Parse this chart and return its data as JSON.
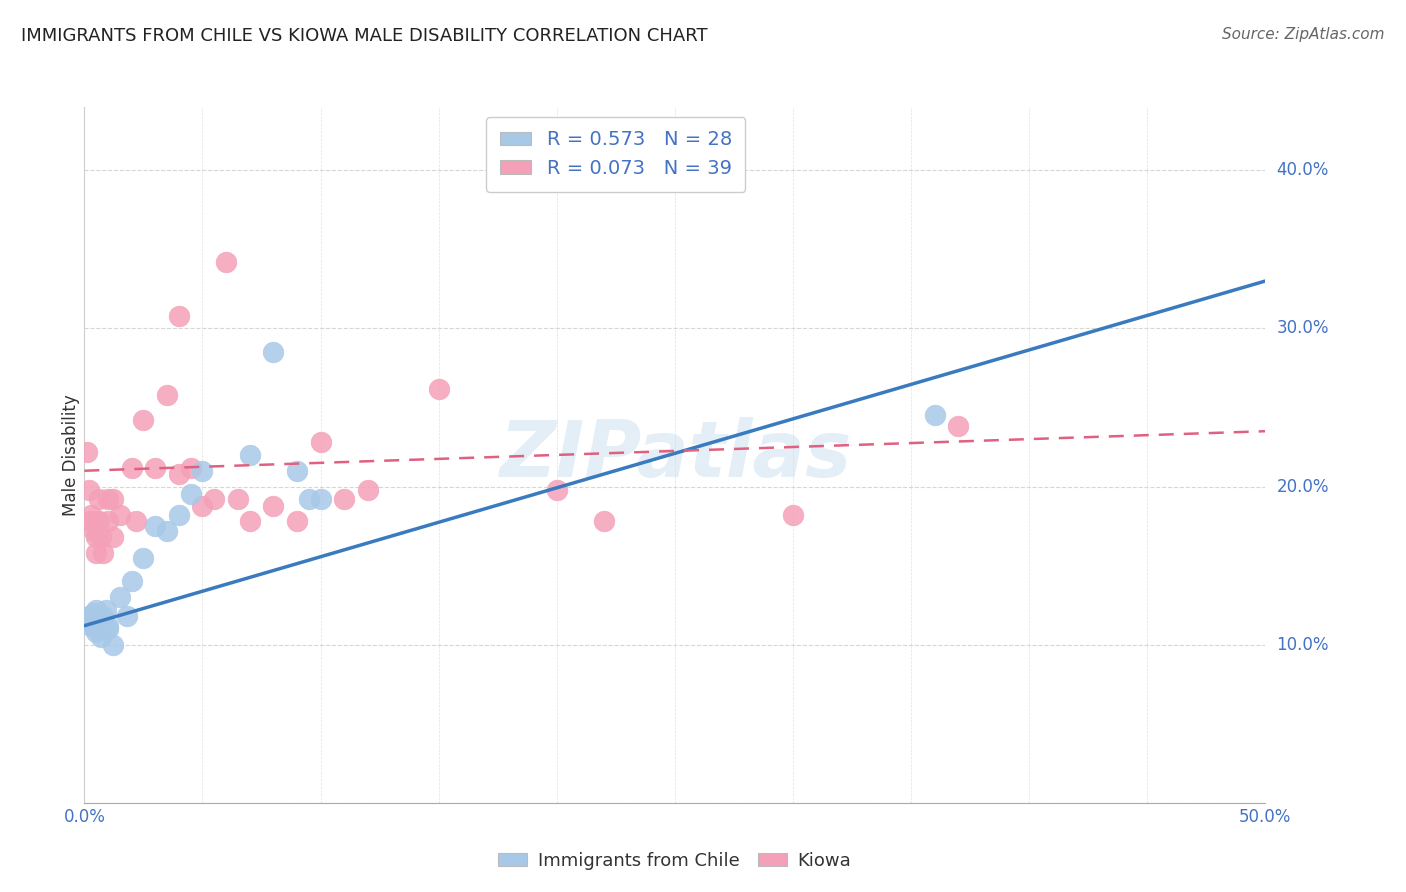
{
  "title": "IMMIGRANTS FROM CHILE VS KIOWA MALE DISABILITY CORRELATION CHART",
  "source": "Source: ZipAtlas.com",
  "ylabel": "Male Disability",
  "xlim": [
    0.0,
    0.5
  ],
  "ylim": [
    0.0,
    0.44
  ],
  "legend_r_blue": "R = 0.573",
  "legend_n_blue": "N = 28",
  "legend_r_pink": "R = 0.073",
  "legend_n_pink": "N = 39",
  "blue_color": "#a8c8e8",
  "pink_color": "#f4a0b8",
  "trend_blue": "#3a7abf",
  "trend_pink": "#e06080",
  "watermark": "ZIPatlas",
  "blue_scatter": [
    [
      0.001,
      0.115
    ],
    [
      0.002,
      0.118
    ],
    [
      0.003,
      0.112
    ],
    [
      0.004,
      0.12
    ],
    [
      0.005,
      0.108
    ],
    [
      0.005,
      0.122
    ],
    [
      0.006,
      0.11
    ],
    [
      0.007,
      0.105
    ],
    [
      0.008,
      0.118
    ],
    [
      0.009,
      0.122
    ],
    [
      0.01,
      0.11
    ],
    [
      0.01,
      0.112
    ],
    [
      0.012,
      0.1
    ],
    [
      0.015,
      0.13
    ],
    [
      0.018,
      0.118
    ],
    [
      0.02,
      0.14
    ],
    [
      0.025,
      0.155
    ],
    [
      0.03,
      0.175
    ],
    [
      0.035,
      0.172
    ],
    [
      0.04,
      0.182
    ],
    [
      0.045,
      0.195
    ],
    [
      0.05,
      0.21
    ],
    [
      0.07,
      0.22
    ],
    [
      0.08,
      0.285
    ],
    [
      0.09,
      0.21
    ],
    [
      0.095,
      0.192
    ],
    [
      0.1,
      0.192
    ],
    [
      0.36,
      0.245
    ]
  ],
  "pink_scatter": [
    [
      0.001,
      0.222
    ],
    [
      0.002,
      0.198
    ],
    [
      0.003,
      0.182
    ],
    [
      0.003,
      0.178
    ],
    [
      0.004,
      0.172
    ],
    [
      0.005,
      0.168
    ],
    [
      0.005,
      0.158
    ],
    [
      0.006,
      0.192
    ],
    [
      0.006,
      0.178
    ],
    [
      0.007,
      0.168
    ],
    [
      0.008,
      0.158
    ],
    [
      0.01,
      0.192
    ],
    [
      0.01,
      0.178
    ],
    [
      0.012,
      0.168
    ],
    [
      0.012,
      0.192
    ],
    [
      0.015,
      0.182
    ],
    [
      0.02,
      0.212
    ],
    [
      0.022,
      0.178
    ],
    [
      0.025,
      0.242
    ],
    [
      0.03,
      0.212
    ],
    [
      0.035,
      0.258
    ],
    [
      0.04,
      0.308
    ],
    [
      0.04,
      0.208
    ],
    [
      0.045,
      0.212
    ],
    [
      0.05,
      0.188
    ],
    [
      0.055,
      0.192
    ],
    [
      0.06,
      0.342
    ],
    [
      0.065,
      0.192
    ],
    [
      0.07,
      0.178
    ],
    [
      0.08,
      0.188
    ],
    [
      0.09,
      0.178
    ],
    [
      0.1,
      0.228
    ],
    [
      0.11,
      0.192
    ],
    [
      0.12,
      0.198
    ],
    [
      0.15,
      0.262
    ],
    [
      0.2,
      0.198
    ],
    [
      0.22,
      0.178
    ],
    [
      0.3,
      0.182
    ],
    [
      0.37,
      0.238
    ]
  ],
  "blue_trend_x": [
    0.0,
    0.5
  ],
  "blue_trend_y": [
    0.112,
    0.33
  ],
  "pink_trend_x": [
    0.0,
    0.5
  ],
  "pink_trend_y": [
    0.21,
    0.235
  ]
}
